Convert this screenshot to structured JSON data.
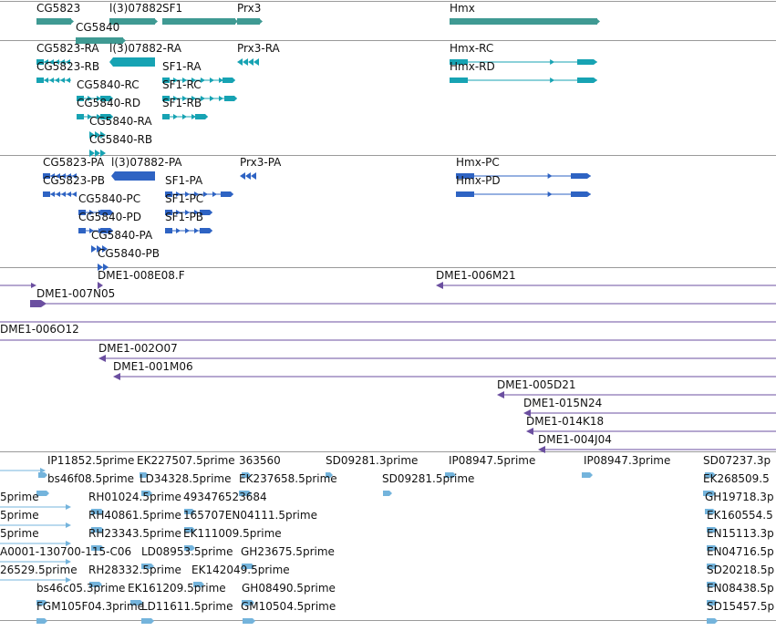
{
  "colors": {
    "gene": "#3f9a93",
    "transcript": "#17a3b3",
    "protein": "#2e63c3",
    "clone": "#6b4fa0",
    "est": "#74b4dc",
    "separator": "#9a9a9a"
  },
  "tracks": [
    {
      "name": "genes",
      "color": "gene",
      "features": [
        {
          "label": "CG5823",
          "style": "bar"
        },
        {
          "label": "l(3)07882",
          "style": "bar"
        },
        {
          "label": "SF1",
          "style": "bar"
        },
        {
          "label": "Prx3",
          "style": "bar"
        },
        {
          "label": "Hmx",
          "style": "bar"
        },
        {
          "label": "CG5840",
          "style": "bar"
        }
      ]
    },
    {
      "name": "transcripts",
      "color": "transcript",
      "features": [
        {
          "label": "CG5823-RA",
          "style": "exon-left"
        },
        {
          "label": "l(3)07882-RA",
          "style": "block"
        },
        {
          "label": "Prx3-RA",
          "style": "arrows-left"
        },
        {
          "label": "Hmx-RC",
          "style": "intron-right"
        },
        {
          "label": "CG5823-RB",
          "style": "exon-left"
        },
        {
          "label": "SF1-RA",
          "style": "exon-right"
        },
        {
          "label": "Hmx-RD",
          "style": "intron-right"
        },
        {
          "label": "CG5840-RC",
          "style": "exon-right"
        },
        {
          "label": "SF1-RC",
          "style": "exon-right"
        },
        {
          "label": "CG5840-RD",
          "style": "exon-right"
        },
        {
          "label": "SF1-RB",
          "style": "exon-right"
        },
        {
          "label": "CG5840-RA",
          "style": "arrows-right"
        },
        {
          "label": "CG5840-RB",
          "style": "arrows-right"
        }
      ]
    },
    {
      "name": "proteins",
      "color": "protein",
      "features": [
        {
          "label": "CG5823-PA",
          "style": "exon-left"
        },
        {
          "label": "l(3)07882-PA",
          "style": "block"
        },
        {
          "label": "Prx3-PA",
          "style": "arrows-left"
        },
        {
          "label": "Hmx-PC",
          "style": "intron-right"
        },
        {
          "label": "CG5823-PB",
          "style": "exon-left"
        },
        {
          "label": "SF1-PA",
          "style": "exon-right"
        },
        {
          "label": "Hmx-PD",
          "style": "intron-right"
        },
        {
          "label": "CG5840-PC",
          "style": "exon-right"
        },
        {
          "label": "SF1-PC",
          "style": "exon-right"
        },
        {
          "label": "CG5840-PD",
          "style": "exon-right"
        },
        {
          "label": "SF1-PB",
          "style": "exon-right"
        },
        {
          "label": "CG5840-PA",
          "style": "arrows-right"
        },
        {
          "label": "CG5840-PB",
          "style": "arrows-right"
        }
      ]
    },
    {
      "name": "clones",
      "color": "clone",
      "features": [
        {
          "label": "",
          "style": "line-right"
        },
        {
          "label": "DME1-008E08.F",
          "style": "arrows-right"
        },
        {
          "label": "DME1-006M21",
          "style": "line-left"
        },
        {
          "label": "DME1-007N05",
          "style": "block-line"
        },
        {
          "label": "",
          "style": "line"
        },
        {
          "label": "DME1-006O12",
          "style": "line"
        },
        {
          "label": "DME1-002O07",
          "style": "line-left"
        },
        {
          "label": "DME1-001M06",
          "style": "line-left"
        },
        {
          "label": "DME1-005D21",
          "style": "line-left"
        },
        {
          "label": "DME1-015N24",
          "style": "line-left"
        },
        {
          "label": "DME1-014K18",
          "style": "line-left"
        },
        {
          "label": "DME1-004J04",
          "style": "line-left"
        }
      ]
    },
    {
      "name": "ests",
      "color": "est",
      "features": [
        {
          "label": "",
          "style": "line-right"
        },
        {
          "label": "IP11852.5prime",
          "style": "small"
        },
        {
          "label": "EK227507.5prime",
          "style": "small"
        },
        {
          "label": "363560",
          "style": "small"
        },
        {
          "label": "SD09281.3prime",
          "style": "small"
        },
        {
          "label": "IP08947.5prime",
          "style": "small"
        },
        {
          "label": "IP08947.3prime",
          "style": "small"
        },
        {
          "label": "SD07237.3p",
          "style": "small"
        },
        {
          "label": "bs46f08.5prime",
          "style": "small"
        },
        {
          "label": "LD34328.5prime",
          "style": "small"
        },
        {
          "label": "EK237658.5prime",
          "style": "small"
        },
        {
          "label": "SD09281.5prime",
          "style": "small"
        },
        {
          "label": "EK268509.5",
          "style": "small"
        },
        {
          "label": "5prime",
          "style": "line-right"
        },
        {
          "label": "RH01024.5prime",
          "style": "small"
        },
        {
          "label": "493476523684",
          "style": "small"
        },
        {
          "label": "GH19718.3p",
          "style": "small"
        },
        {
          "label": "5prime",
          "style": "line-right"
        },
        {
          "label": "RH40861.5prime",
          "style": "small"
        },
        {
          "label": "165707EN04111.5prime",
          "style": "small"
        },
        {
          "label": "EK160554.5",
          "style": "small"
        },
        {
          "label": "5prime",
          "style": "line-right"
        },
        {
          "label": "RH23343.5prime",
          "style": "small"
        },
        {
          "label": "EK111009.5prime",
          "style": "small"
        },
        {
          "label": "EN15113.3p",
          "style": "small"
        },
        {
          "label": "A0001-130700-115-C06",
          "style": "line-right"
        },
        {
          "label": "LD08953.5prime",
          "style": "small"
        },
        {
          "label": "GH23675.5prime",
          "style": "small"
        },
        {
          "label": "EN04716.5p",
          "style": "small"
        },
        {
          "label": "26529.5prime",
          "style": "line-right"
        },
        {
          "label": "RH28332.5prime",
          "style": "small"
        },
        {
          "label": "EK142049.5prime",
          "style": "small"
        },
        {
          "label": "SD20218.5p",
          "style": "small"
        },
        {
          "label": "bs46c05.3prime",
          "style": "small"
        },
        {
          "label": "EK161209.5prime",
          "style": "small"
        },
        {
          "label": "GH08490.5prime",
          "style": "small"
        },
        {
          "label": "EN08438.5p",
          "style": "small"
        },
        {
          "label": "FGM105F04.3prime",
          "style": "small"
        },
        {
          "label": "LD11611.5prime",
          "style": "small"
        },
        {
          "label": "GM10504.5prime",
          "style": "small"
        },
        {
          "label": "SD15457.5p",
          "style": "small"
        }
      ]
    }
  ]
}
